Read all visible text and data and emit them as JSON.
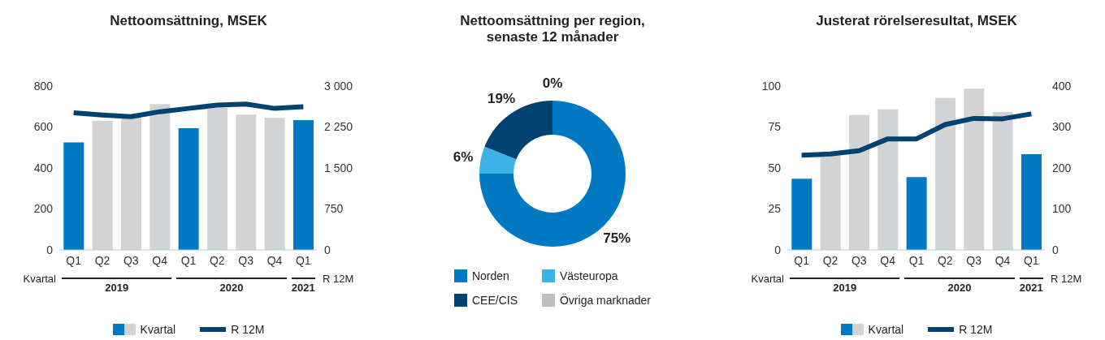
{
  "chart_data": [
    {
      "type": "bar",
      "title": "Nettoomsättning, MSEK",
      "xlabel": "Kvartal",
      "y2label": "R 12M",
      "categories": [
        "Q1",
        "Q2",
        "Q3",
        "Q4",
        "Q1",
        "Q2",
        "Q3",
        "Q4",
        "Q1"
      ],
      "annotations": [
        "2019",
        "2020",
        "2021"
      ],
      "series": [
        {
          "name": "Kvartal",
          "type": "bar",
          "color": "#0079c2",
          "colors": [
            "#0079c2",
            "#d1d3d4",
            "#d1d3d4",
            "#d1d3d4",
            "#0079c2",
            "#d1d3d4",
            "#d1d3d4",
            "#d1d3d4",
            "#0079c2"
          ],
          "values": [
            525,
            631,
            655,
            712,
            594,
            694,
            660,
            645,
            634
          ]
        },
        {
          "name": "R 12M",
          "type": "line",
          "axis": "y2",
          "color": "#004370",
          "values": [
            2510,
            2470,
            2440,
            2530,
            2590,
            2650,
            2670,
            2590,
            2620
          ]
        }
      ],
      "ylim": [
        0,
        800
      ],
      "yticks": [
        0,
        200,
        400,
        600,
        800
      ],
      "y2lim": [
        0,
        3000
      ],
      "y2ticks": [
        0,
        750,
        {
          "value": 1500,
          "label": "1 500"
        },
        {
          "value": 2250,
          "label": "2 250"
        },
        {
          "value": 3000,
          "label": "3 000"
        }
      ],
      "grid": false,
      "legend": "bottom",
      "marker": "none"
    },
    {
      "type": "donut",
      "title": "Nettoomsättning per region, senaste 12 månader",
      "categories": [
        "Norden",
        "Västeuropa",
        "CEE/CIS",
        "Övriga marknader"
      ],
      "values": [
        75,
        6,
        19,
        0
      ],
      "value_labels": [
        "75%",
        "6%",
        "19%",
        "0%"
      ],
      "colors": [
        "#0079c2",
        "#3bb4e5",
        "#004370",
        "#bcbec0"
      ],
      "legend": "bottom"
    },
    {
      "type": "bar",
      "title": "Justerat rörelseresultat, MSEK",
      "xlabel": "Kvartal",
      "y2label": "R 12M",
      "categories": [
        "Q1",
        "Q2",
        "Q3",
        "Q4",
        "Q1",
        "Q2",
        "Q3",
        "Q4",
        "Q1"
      ],
      "annotations": [
        "2019",
        "2020",
        "2021"
      ],
      "series": [
        {
          "name": "Kvartal",
          "type": "bar",
          "color": "#0079c2",
          "colors": [
            "#0079c2",
            "#d1d3d4",
            "#d1d3d4",
            "#d1d3d4",
            "#0079c2",
            "#d1d3d4",
            "#d1d3d4",
            "#d1d3d4",
            "#0079c2"
          ],
          "values": [
            43.4,
            60,
            82.3,
            85.8,
            44.4,
            92.7,
            98.4,
            84.2,
            58.4
          ]
        },
        {
          "name": "R 12M",
          "type": "line",
          "axis": "y2",
          "color": "#004370",
          "values": [
            231,
            234,
            242,
            271,
            271,
            306,
            321,
            320,
            332
          ]
        }
      ],
      "ylim": [
        0,
        100
      ],
      "yticks": [
        0,
        25,
        50,
        75,
        100
      ],
      "y2lim": [
        0,
        400
      ],
      "y2ticks": [
        0,
        100,
        200,
        300,
        400
      ],
      "grid": false,
      "legend": "bottom",
      "marker": "none"
    }
  ]
}
